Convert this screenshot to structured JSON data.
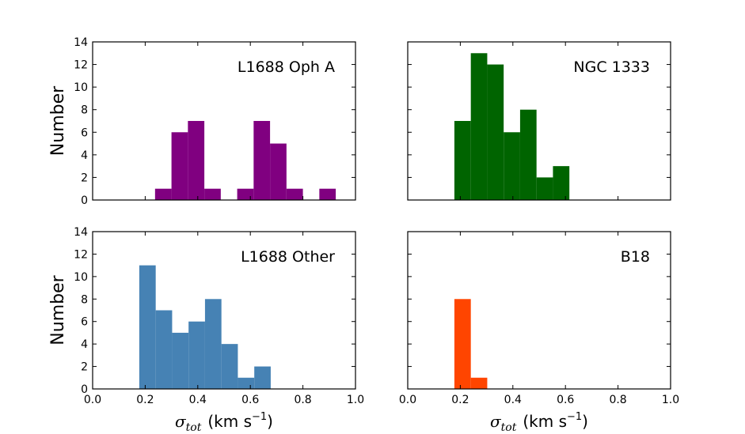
{
  "chart_data": [
    {
      "type": "bar",
      "id": "l1688-oph-a",
      "label": "L1688 Oph A",
      "color": "#800080",
      "ylabel": "Number",
      "xlabel": "",
      "xlim": [
        0.0,
        1.0
      ],
      "ylim": [
        0,
        14
      ],
      "yticks": [
        "0",
        "2",
        "4",
        "6",
        "8",
        "10",
        "12",
        "14"
      ],
      "xticks": [
        "0.0",
        "0.2",
        "0.4",
        "0.6",
        "0.8",
        "1.0"
      ],
      "show_xtick_labels": false,
      "show_ytick_labels": true,
      "bins": [
        {
          "x0": 0.2375,
          "x1": 0.3,
          "value": 1
        },
        {
          "x0": 0.3,
          "x1": 0.3625,
          "value": 6
        },
        {
          "x0": 0.3625,
          "x1": 0.425,
          "value": 7
        },
        {
          "x0": 0.425,
          "x1": 0.4875,
          "value": 1
        },
        {
          "x0": 0.55,
          "x1": 0.6125,
          "value": 1
        },
        {
          "x0": 0.6125,
          "x1": 0.675,
          "value": 7
        },
        {
          "x0": 0.675,
          "x1": 0.7375,
          "value": 5
        },
        {
          "x0": 0.7375,
          "x1": 0.8,
          "value": 1
        },
        {
          "x0": 0.8625,
          "x1": 0.925,
          "value": 1
        }
      ]
    },
    {
      "type": "bar",
      "id": "ngc-1333",
      "label": "NGC 1333",
      "color": "#006400",
      "ylabel": "",
      "xlabel": "",
      "xlim": [
        0.0,
        1.0
      ],
      "ylim": [
        0,
        14
      ],
      "yticks": [
        "0",
        "2",
        "4",
        "6",
        "8",
        "10",
        "12",
        "14"
      ],
      "xticks": [
        "0.0",
        "0.2",
        "0.4",
        "0.6",
        "0.8",
        "1.0"
      ],
      "show_xtick_labels": false,
      "show_ytick_labels": false,
      "bins": [
        {
          "x0": 0.1775,
          "x1": 0.24,
          "value": 7
        },
        {
          "x0": 0.24,
          "x1": 0.3025,
          "value": 13
        },
        {
          "x0": 0.3025,
          "x1": 0.365,
          "value": 12
        },
        {
          "x0": 0.365,
          "x1": 0.4275,
          "value": 6
        },
        {
          "x0": 0.4275,
          "x1": 0.49,
          "value": 8
        },
        {
          "x0": 0.49,
          "x1": 0.5525,
          "value": 2
        },
        {
          "x0": 0.5525,
          "x1": 0.615,
          "value": 3
        }
      ]
    },
    {
      "type": "bar",
      "id": "l1688-other",
      "label": "L1688 Other",
      "color": "#4682B4",
      "ylabel": "Number",
      "xlabel": "σ_tot (km s⁻¹)",
      "xlabel_sigma": "σ",
      "xlabel_sub": "tot",
      "xlabel_units": "(km s",
      "xlabel_exp": "−1",
      "xlabel_close": ")",
      "xlim": [
        0.0,
        1.0
      ],
      "ylim": [
        0,
        14
      ],
      "yticks": [
        "0",
        "2",
        "4",
        "6",
        "8",
        "10",
        "12",
        "14"
      ],
      "xticks": [
        "0.0",
        "0.2",
        "0.4",
        "0.6",
        "0.8",
        "1.0"
      ],
      "show_xtick_labels": true,
      "show_ytick_labels": true,
      "bins": [
        {
          "x0": 0.1775,
          "x1": 0.24,
          "value": 11
        },
        {
          "x0": 0.24,
          "x1": 0.3025,
          "value": 7
        },
        {
          "x0": 0.3025,
          "x1": 0.365,
          "value": 5
        },
        {
          "x0": 0.365,
          "x1": 0.4275,
          "value": 6
        },
        {
          "x0": 0.4275,
          "x1": 0.49,
          "value": 8
        },
        {
          "x0": 0.49,
          "x1": 0.5525,
          "value": 4
        },
        {
          "x0": 0.5525,
          "x1": 0.615,
          "value": 1
        },
        {
          "x0": 0.615,
          "x1": 0.6775,
          "value": 2
        }
      ]
    },
    {
      "type": "bar",
      "id": "b18",
      "label": "B18",
      "color": "#FF4500",
      "ylabel": "",
      "xlabel": "σ_tot (km s⁻¹)",
      "xlabel_sigma": "σ",
      "xlabel_sub": "tot",
      "xlabel_units": "(km s",
      "xlabel_exp": "−1",
      "xlabel_close": ")",
      "xlim": [
        0.0,
        1.0
      ],
      "ylim": [
        0,
        14
      ],
      "yticks": [
        "0",
        "2",
        "4",
        "6",
        "8",
        "10",
        "12",
        "14"
      ],
      "xticks": [
        "0.0",
        "0.2",
        "0.4",
        "0.6",
        "0.8",
        "1.0"
      ],
      "show_xtick_labels": true,
      "show_ytick_labels": false,
      "bins": [
        {
          "x0": 0.1775,
          "x1": 0.24,
          "value": 8
        },
        {
          "x0": 0.24,
          "x1": 0.3025,
          "value": 1
        }
      ]
    }
  ]
}
